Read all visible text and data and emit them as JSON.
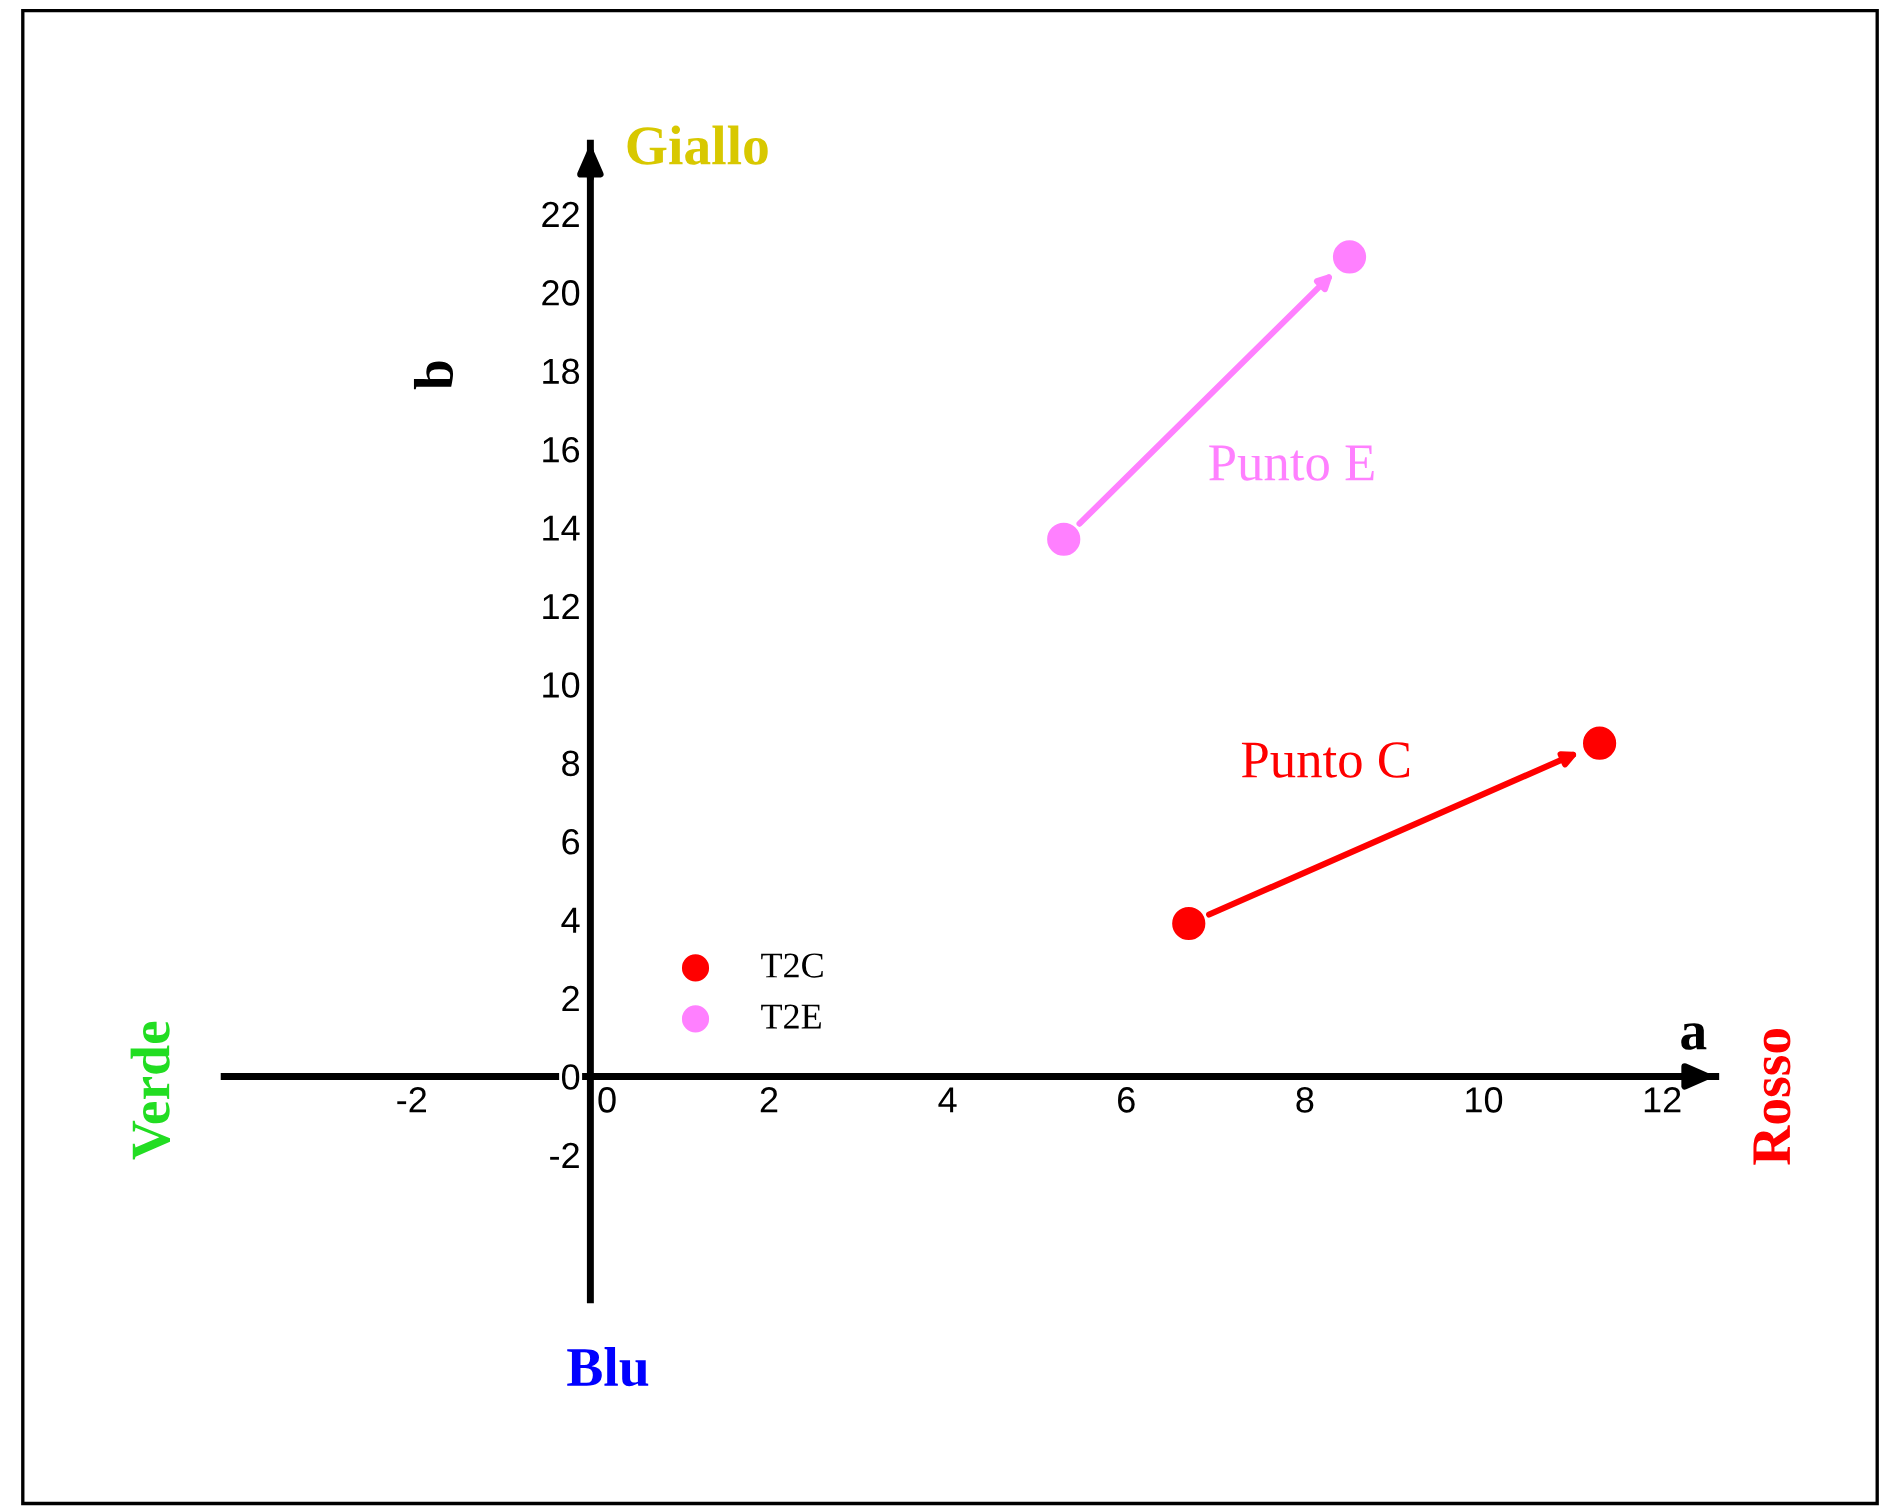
{
  "chart_data": {
    "type": "scatter",
    "xlabel": "a",
    "ylabel": "b",
    "series": [
      {
        "name": "T2C",
        "color": "#ff0000",
        "x": [
          6.7,
          11.3
        ],
        "values": [
          3.9,
          8.5
        ]
      },
      {
        "name": "T2E",
        "color": "#ff80ff",
        "x": [
          5.3,
          8.5
        ],
        "values": [
          13.7,
          20.9
        ]
      }
    ],
    "xlim": [
      -4.1,
      12.6
    ],
    "ylim": [
      -5.7,
      23.8
    ],
    "xticks": [
      -2,
      0,
      2,
      4,
      6,
      8,
      10,
      12
    ],
    "yticks": [
      -2,
      0,
      2,
      4,
      6,
      8,
      10,
      12,
      14,
      16,
      18,
      20,
      22
    ],
    "annotations": [
      "Giallo",
      "Blu",
      "Verde",
      "Rosso",
      "Punto E",
      "Punto C"
    ],
    "grid": false,
    "legend": "lower left",
    "marker": "circle"
  }
}
